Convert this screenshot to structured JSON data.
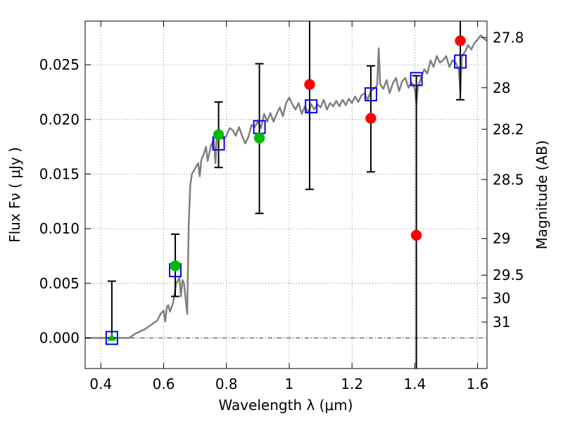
{
  "chart_data": {
    "type": "scatter",
    "xlabel": "Wavelength  λ (μm)",
    "ylabel": "Flux  Fν  ( μJy )",
    "ylabel_right": "Magnitude (AB)",
    "xlim": [
      0.35,
      1.63
    ],
    "ylim": [
      -0.0028,
      0.029
    ],
    "x_ticks": [
      0.4,
      0.6,
      0.8,
      1.0,
      1.2,
      1.4,
      1.6
    ],
    "x_tick_labels": [
      "0.4",
      "0.6",
      "0.8",
      "1",
      "1.2",
      "1.4",
      "1.6"
    ],
    "y_ticks": [
      0.0,
      0.005,
      0.01,
      0.015,
      0.02,
      0.025
    ],
    "y_tick_labels": [
      "0.000",
      "0.005",
      "0.010",
      "0.015",
      "0.020",
      "0.025"
    ],
    "right_ticks": [
      {
        "label": "27.8",
        "flux": 0.0275
      },
      {
        "label": "28",
        "flux": 0.0229
      },
      {
        "label": "28.2",
        "flux": 0.0191
      },
      {
        "label": "28.5",
        "flux": 0.0145
      },
      {
        "label": "29",
        "flux": 0.0091
      },
      {
        "label": "29.5",
        "flux": 0.00575
      },
      {
        "label": "30",
        "flux": 0.00365
      },
      {
        "label": "31",
        "flux": 0.00145
      }
    ],
    "grid": true,
    "zero_line": 0.0,
    "sed_model": {
      "color": "#808080",
      "points": [
        [
          0.35,
          0.0
        ],
        [
          0.49,
          0.0
        ],
        [
          0.51,
          0.0004
        ],
        [
          0.54,
          0.0008
        ],
        [
          0.56,
          0.0012
        ],
        [
          0.58,
          0.0016
        ],
        [
          0.59,
          0.0022
        ],
        [
          0.6,
          0.0025
        ],
        [
          0.605,
          0.0015
        ],
        [
          0.61,
          0.0028
        ],
        [
          0.615,
          0.003
        ],
        [
          0.62,
          0.0024
        ],
        [
          0.63,
          0.0032
        ],
        [
          0.64,
          0.005
        ],
        [
          0.65,
          0.0055
        ],
        [
          0.655,
          0.0038
        ],
        [
          0.66,
          0.0053
        ],
        [
          0.665,
          0.005
        ],
        [
          0.67,
          0.0035
        ],
        [
          0.675,
          0.0022
        ],
        [
          0.68,
          0.0105
        ],
        [
          0.685,
          0.014
        ],
        [
          0.69,
          0.015
        ],
        [
          0.7,
          0.0155
        ],
        [
          0.71,
          0.016
        ],
        [
          0.715,
          0.0148
        ],
        [
          0.72,
          0.0163
        ],
        [
          0.73,
          0.017
        ],
        [
          0.735,
          0.0175
        ],
        [
          0.74,
          0.0162
        ],
        [
          0.75,
          0.0175
        ],
        [
          0.76,
          0.0182
        ],
        [
          0.765,
          0.016
        ],
        [
          0.77,
          0.0188
        ],
        [
          0.78,
          0.019
        ],
        [
          0.79,
          0.0182
        ],
        [
          0.8,
          0.0185
        ],
        [
          0.81,
          0.0192
        ],
        [
          0.82,
          0.019
        ],
        [
          0.83,
          0.0185
        ],
        [
          0.84,
          0.0193
        ],
        [
          0.85,
          0.0185
        ],
        [
          0.86,
          0.0178
        ],
        [
          0.87,
          0.0184
        ],
        [
          0.88,
          0.0195
        ],
        [
          0.89,
          0.0193
        ],
        [
          0.9,
          0.0198
        ],
        [
          0.91,
          0.0192
        ],
        [
          0.92,
          0.0205
        ],
        [
          0.93,
          0.0198
        ],
        [
          0.94,
          0.0206
        ],
        [
          0.95,
          0.0198
        ],
        [
          0.96,
          0.0205
        ],
        [
          0.97,
          0.0211
        ],
        [
          0.98,
          0.0203
        ],
        [
          0.99,
          0.0215
        ],
        [
          1.0,
          0.022
        ],
        [
          1.01,
          0.0214
        ],
        [
          1.02,
          0.0209
        ],
        [
          1.03,
          0.0215
        ],
        [
          1.04,
          0.0205
        ],
        [
          1.05,
          0.0212
        ],
        [
          1.06,
          0.0206
        ],
        [
          1.07,
          0.0214
        ],
        [
          1.08,
          0.0209
        ],
        [
          1.09,
          0.0214
        ],
        [
          1.1,
          0.0211
        ],
        [
          1.11,
          0.0218
        ],
        [
          1.12,
          0.0209
        ],
        [
          1.13,
          0.0215
        ],
        [
          1.14,
          0.0212
        ],
        [
          1.15,
          0.0217
        ],
        [
          1.16,
          0.0212
        ],
        [
          1.17,
          0.0218
        ],
        [
          1.18,
          0.0213
        ],
        [
          1.19,
          0.0219
        ],
        [
          1.2,
          0.0215
        ],
        [
          1.21,
          0.0221
        ],
        [
          1.22,
          0.0216
        ],
        [
          1.23,
          0.0222
        ],
        [
          1.24,
          0.0224
        ],
        [
          1.25,
          0.0218
        ],
        [
          1.26,
          0.0226
        ],
        [
          1.27,
          0.0228
        ],
        [
          1.28,
          0.0231
        ],
        [
          1.285,
          0.0265
        ],
        [
          1.29,
          0.0232
        ],
        [
          1.3,
          0.0228
        ],
        [
          1.31,
          0.0236
        ],
        [
          1.32,
          0.0224
        ],
        [
          1.33,
          0.0233
        ],
        [
          1.34,
          0.0238
        ],
        [
          1.35,
          0.0226
        ],
        [
          1.36,
          0.0235
        ],
        [
          1.37,
          0.0238
        ],
        [
          1.38,
          0.0229
        ],
        [
          1.39,
          0.0234
        ],
        [
          1.4,
          0.0228
        ],
        [
          1.405,
          0.0215
        ],
        [
          1.41,
          0.023
        ],
        [
          1.42,
          0.0238
        ],
        [
          1.43,
          0.0246
        ],
        [
          1.44,
          0.0242
        ],
        [
          1.45,
          0.0254
        ],
        [
          1.46,
          0.0248
        ],
        [
          1.47,
          0.0258
        ],
        [
          1.48,
          0.0252
        ],
        [
          1.49,
          0.0254
        ],
        [
          1.5,
          0.0258
        ],
        [
          1.51,
          0.0248
        ],
        [
          1.52,
          0.0254
        ],
        [
          1.53,
          0.0252
        ],
        [
          1.54,
          0.0246
        ],
        [
          1.545,
          0.0225
        ],
        [
          1.55,
          0.0258
        ],
        [
          1.56,
          0.0262
        ],
        [
          1.57,
          0.0268
        ],
        [
          1.58,
          0.0264
        ],
        [
          1.59,
          0.027
        ],
        [
          1.6,
          0.0273
        ],
        [
          1.61,
          0.0277
        ],
        [
          1.62,
          0.0274
        ],
        [
          1.63,
          0.0272
        ]
      ]
    },
    "series": [
      {
        "marker": "square-open",
        "color": "#0000ff",
        "points": [
          {
            "x": 0.435,
            "y": 0.0
          },
          {
            "x": 0.637,
            "y": 0.0062
          },
          {
            "x": 0.775,
            "y": 0.0178
          },
          {
            "x": 0.905,
            "y": 0.0193
          },
          {
            "x": 1.07,
            "y": 0.0212
          },
          {
            "x": 1.26,
            "y": 0.0223
          },
          {
            "x": 1.405,
            "y": 0.0237
          },
          {
            "x": 1.545,
            "y": 0.0253
          }
        ]
      },
      {
        "marker": "circle",
        "color": "#00bb00",
        "points": [
          {
            "x": 0.637,
            "y": 0.0066
          },
          {
            "x": 0.775,
            "y": 0.0186
          },
          {
            "x": 0.905,
            "y": 0.0183
          }
        ]
      },
      {
        "marker": "triangle",
        "color": "#00bb00",
        "points": [
          {
            "x": 0.435,
            "y": 0.0
          }
        ]
      },
      {
        "marker": "circle",
        "color": "#ff0000",
        "points": [
          {
            "x": 1.065,
            "y": 0.0232
          },
          {
            "x": 1.26,
            "y": 0.0201
          },
          {
            "x": 1.405,
            "y": 0.0094
          },
          {
            "x": 1.545,
            "y": 0.0272
          }
        ]
      }
    ],
    "errorbars": [
      {
        "x": 0.435,
        "low": 0.0,
        "high": 0.0052
      },
      {
        "x": 0.637,
        "low": 0.0038,
        "high": 0.0095
      },
      {
        "x": 0.775,
        "low": 0.0156,
        "high": 0.0216
      },
      {
        "x": 0.905,
        "low": 0.0114,
        "high": 0.0251
      },
      {
        "x": 1.065,
        "low": 0.0136,
        "high": 0.029
      },
      {
        "x": 1.26,
        "low": 0.0152,
        "high": 0.0249
      },
      {
        "x": 1.405,
        "low": -0.0028,
        "high": 0.024
      },
      {
        "x": 1.545,
        "low": 0.0218,
        "high": 0.029
      }
    ],
    "colors": {
      "model": "#808080",
      "observed": "#ff0000",
      "detected": "#00bb00",
      "model_band": "#0000ff",
      "errorbar": "#000000",
      "grid": "#888888"
    }
  }
}
